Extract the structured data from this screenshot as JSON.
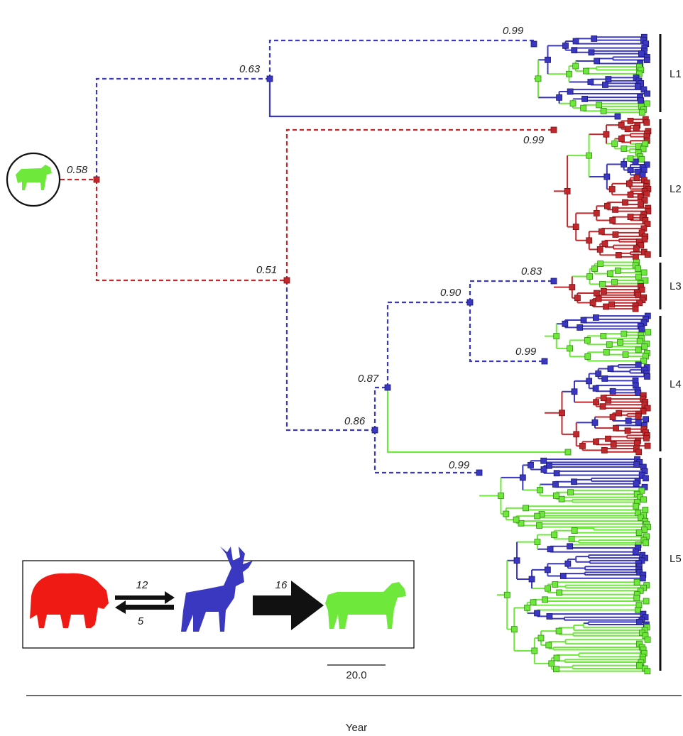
{
  "axis": {
    "label": "Year",
    "range": [
      1800,
      2025
    ],
    "ticks": [
      1800,
      1850,
      1900,
      1950,
      2000
    ],
    "grid": [
      1800,
      1825,
      1850,
      1875,
      1900,
      1925,
      1950,
      1975,
      2000
    ]
  },
  "nodes": [
    {
      "label": "0.58"
    },
    {
      "label": "0.63"
    },
    {
      "label": "0.99"
    },
    {
      "label": "0.99"
    },
    {
      "label": "0.51"
    },
    {
      "label": "0.83"
    },
    {
      "label": "0.90"
    },
    {
      "label": "0.99"
    },
    {
      "label": "0.87"
    },
    {
      "label": "0.86"
    },
    {
      "label": "0.99"
    }
  ],
  "clades": [
    "L1",
    "L2",
    "L3",
    "L4",
    "L5"
  ],
  "legend": {
    "bison_to_elk": "12",
    "elk_to_bison": "5",
    "elk_to_cattle": "16"
  },
  "scale_bar": "20.0"
}
